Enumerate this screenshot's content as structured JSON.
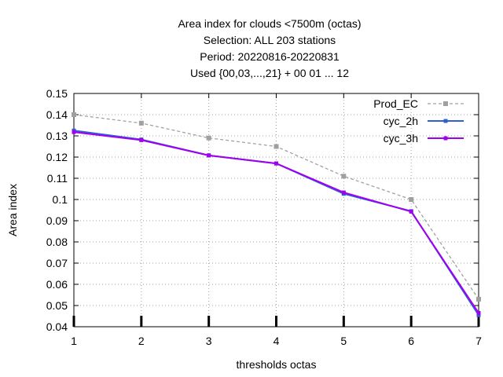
{
  "chart_data": {
    "type": "line",
    "title_lines": [
      "Area index  for clouds <7500m (octas)",
      "Selection: ALL    203 stations",
      "Period: 20220816-20220831",
      "Used {00,03,...,21} + 00 01 ... 12"
    ],
    "xlabel": "thresholds octas",
    "ylabel": "Area index",
    "x": [
      1,
      2,
      3,
      4,
      5,
      6,
      7
    ],
    "xlim": [
      1,
      7
    ],
    "ylim": [
      0.04,
      0.15
    ],
    "xticks": [
      "1",
      "2",
      "3",
      "4",
      "5",
      "6",
      "7"
    ],
    "yticks": [
      "0.04",
      "0.05",
      "0.06",
      "0.07",
      "0.08",
      "0.09",
      "0.1",
      "0.11",
      "0.12",
      "0.13",
      "0.14",
      "0.15"
    ],
    "grid": true,
    "legend_position": "top-right",
    "series": [
      {
        "name": "Prod_EC",
        "color": "#a0a0a0",
        "dashed": true,
        "values": [
          0.14,
          0.136,
          0.129,
          0.125,
          0.111,
          0.1,
          0.053
        ]
      },
      {
        "name": "cyc_2h",
        "color": "#3060d0",
        "dashed": false,
        "values": [
          0.1325,
          0.1283,
          0.1208,
          0.117,
          0.1027,
          0.0945,
          0.0455
        ]
      },
      {
        "name": "cyc_3h",
        "color": "#a000f0",
        "dashed": false,
        "values": [
          0.1318,
          0.128,
          0.1208,
          0.117,
          0.1033,
          0.0943,
          0.0465
        ]
      }
    ]
  }
}
